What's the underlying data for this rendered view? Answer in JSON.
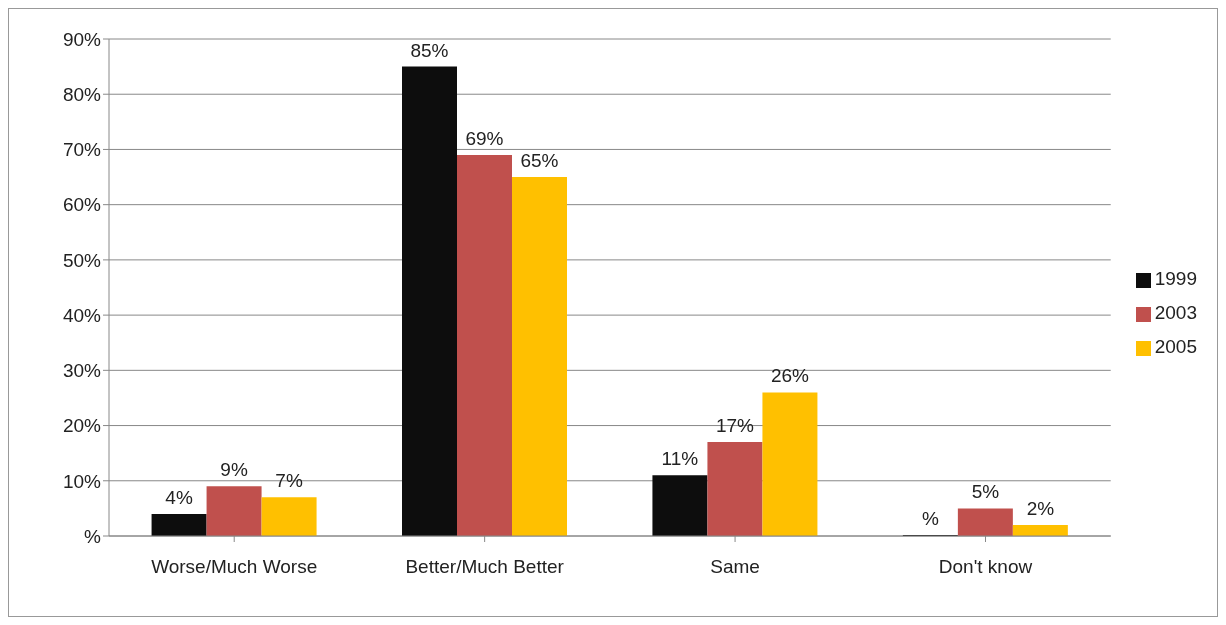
{
  "chart_data": {
    "type": "bar",
    "categories": [
      "Worse/Much Worse",
      "Better/Much Better",
      "Same",
      "Don't know"
    ],
    "series": [
      {
        "name": "1999",
        "color": "#0d0d0d",
        "values": [
          4,
          85,
          11,
          0
        ],
        "value_labels": [
          "4%",
          "85%",
          "11%",
          "%"
        ]
      },
      {
        "name": "2003",
        "color": "#c0504d",
        "values": [
          9,
          69,
          17,
          5
        ],
        "value_labels": [
          "9%",
          "69%",
          "17%",
          "5%"
        ]
      },
      {
        "name": "2005",
        "color": "#ffc000",
        "values": [
          7,
          65,
          26,
          2
        ],
        "value_labels": [
          "7%",
          "65%",
          "26%",
          "2%"
        ]
      }
    ],
    "ylim": [
      0,
      90
    ],
    "yticks": [
      {
        "value": 0,
        "label": "%"
      },
      {
        "value": 10,
        "label": "10%"
      },
      {
        "value": 20,
        "label": "20%"
      },
      {
        "value": 30,
        "label": "30%"
      },
      {
        "value": 40,
        "label": "40%"
      },
      {
        "value": 50,
        "label": "50%"
      },
      {
        "value": 60,
        "label": "60%"
      },
      {
        "value": 70,
        "label": "70%"
      },
      {
        "value": 80,
        "label": "80%"
      },
      {
        "value": 90,
        "label": "90%"
      }
    ],
    "grid": "y",
    "legend": "right"
  }
}
